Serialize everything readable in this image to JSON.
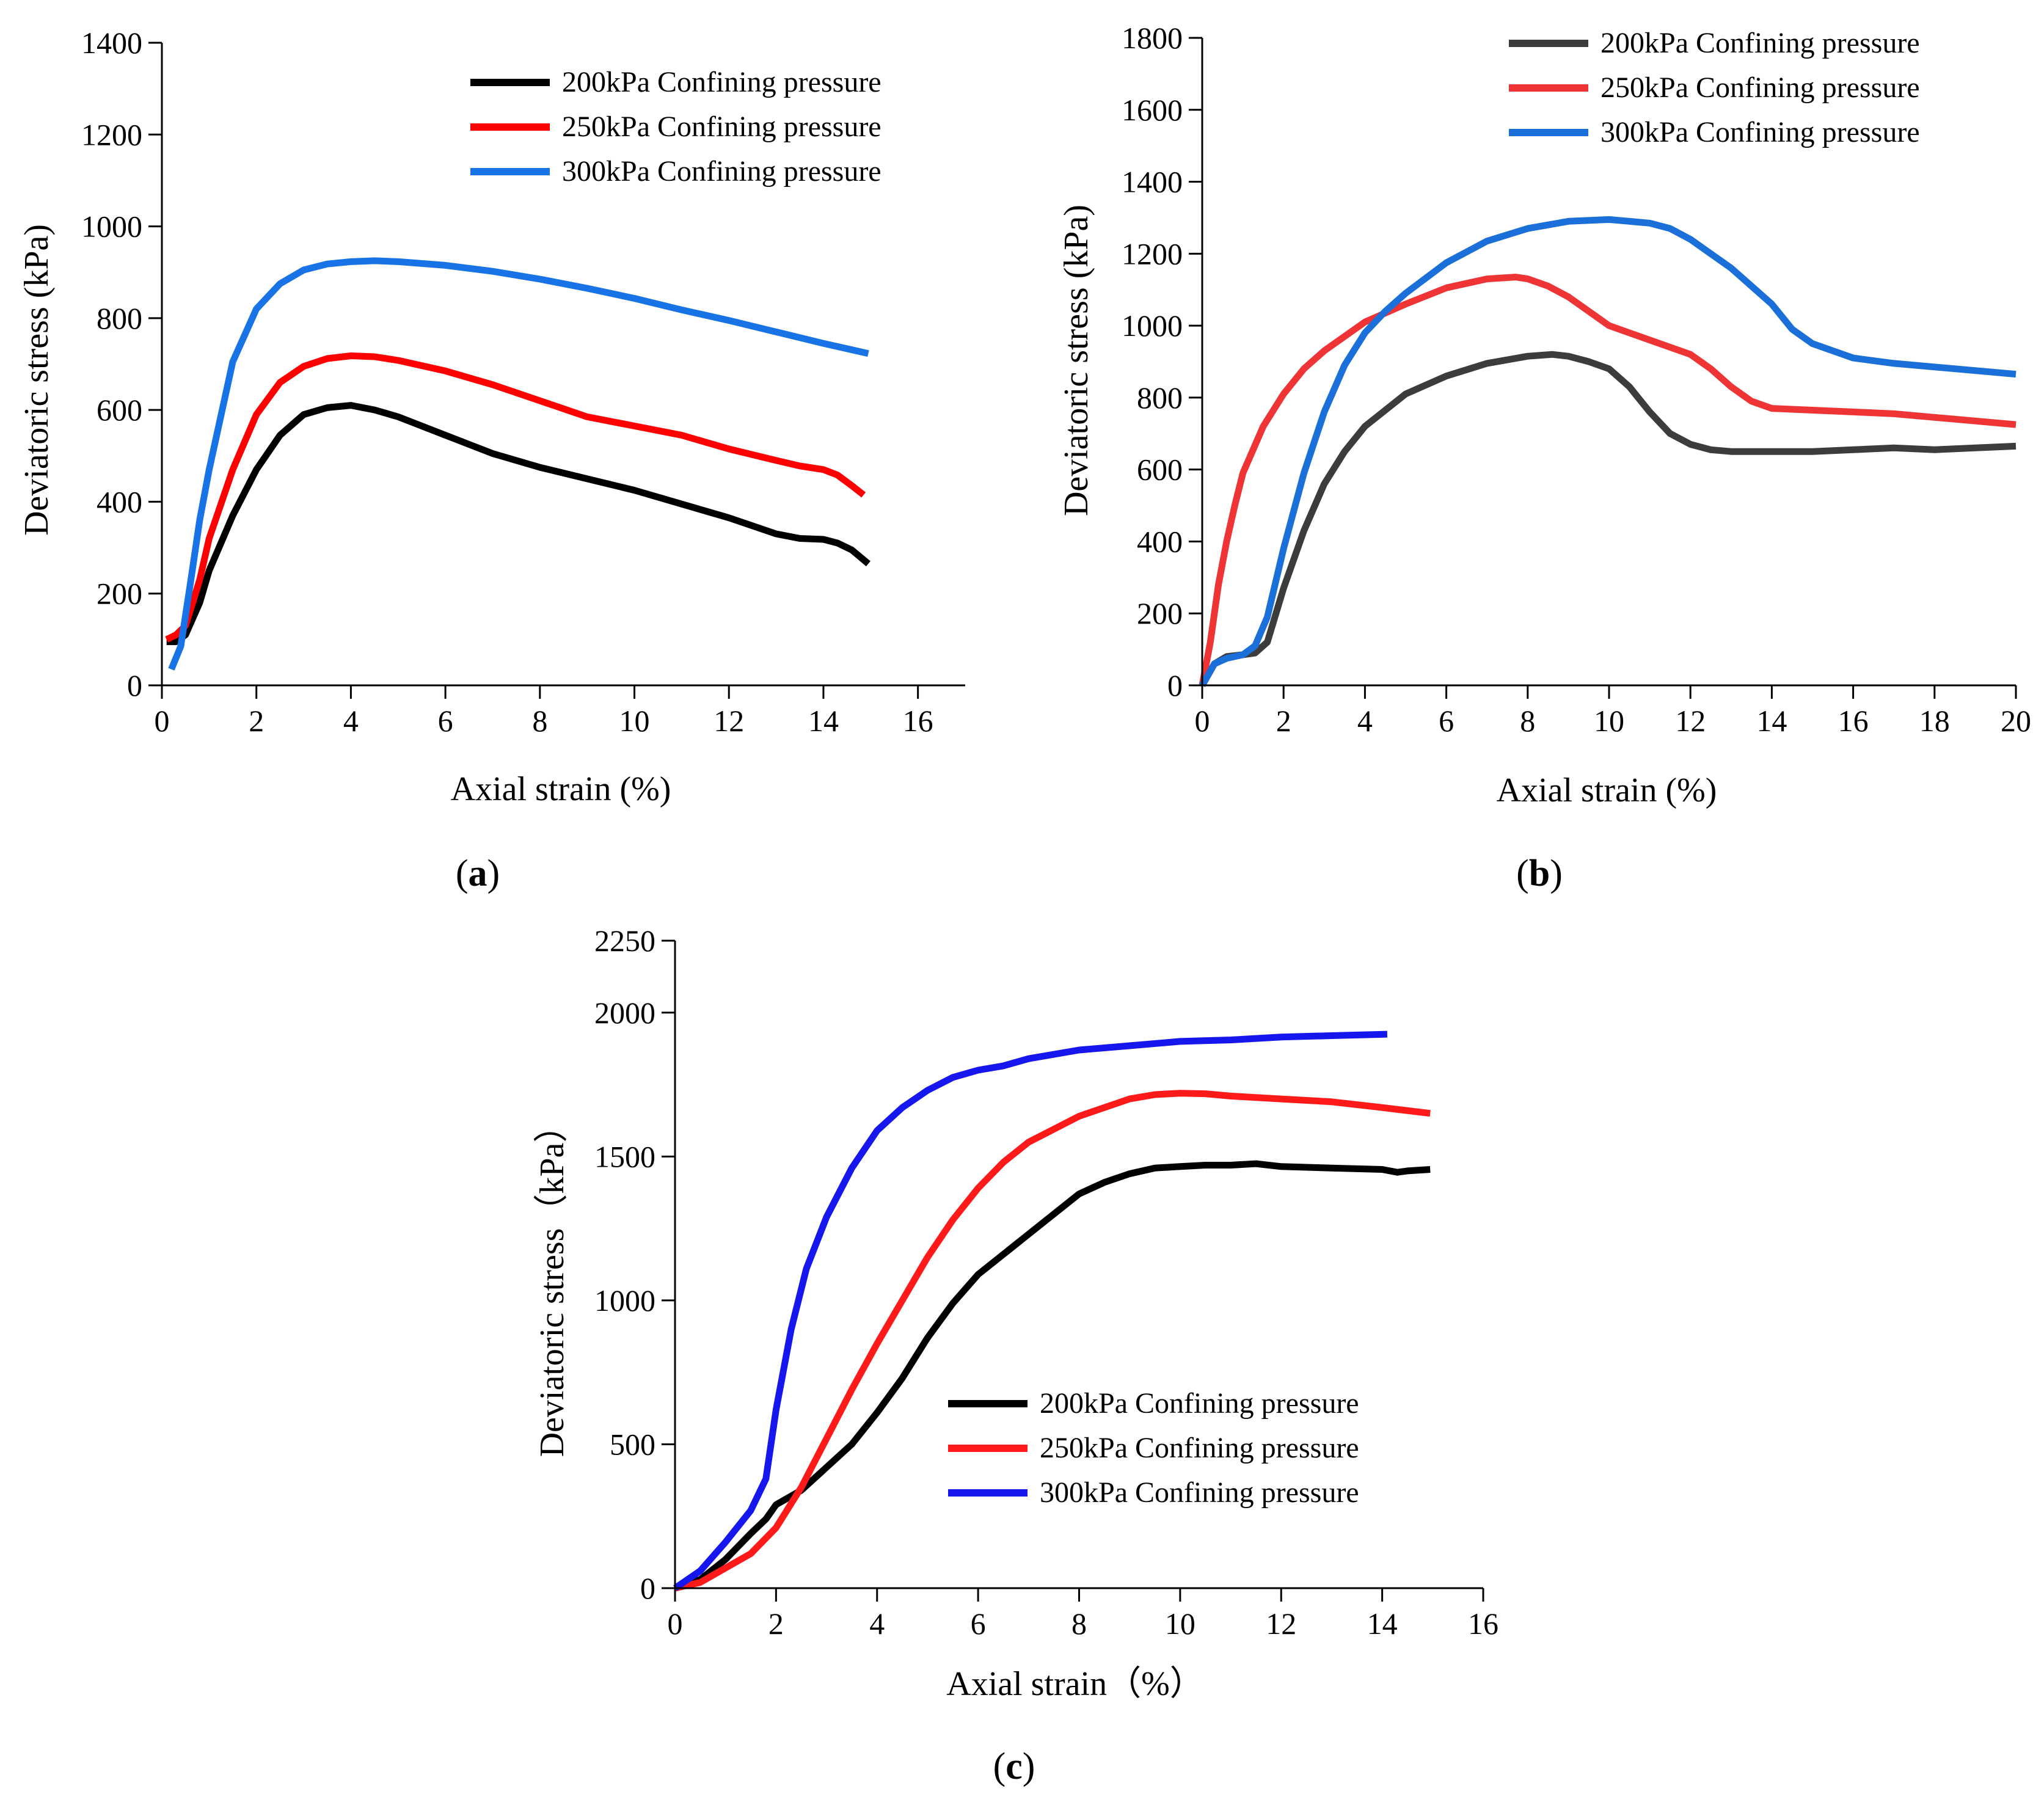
{
  "chart_data": [
    {
      "type": "line",
      "panel_label": {
        "open": "(",
        "letter": "a",
        "close": ")"
      },
      "xlabel": "Axial strain (%)",
      "ylabel": "Deviatoric stress (kPa)",
      "xlim": [
        0,
        17
      ],
      "ylim": [
        0,
        1400
      ],
      "xticks": [
        0,
        2,
        4,
        6,
        8,
        10,
        12,
        14,
        16
      ],
      "yticks": [
        0,
        200,
        400,
        600,
        800,
        1000,
        1200,
        1400
      ],
      "legend_position": "top-right",
      "series": [
        {
          "name": "200kPa Confining pressure",
          "color": "#000000",
          "x": [
            0.1,
            0.3,
            0.5,
            0.8,
            1.0,
            1.5,
            2.0,
            2.5,
            3.0,
            3.5,
            4.0,
            4.5,
            5.0,
            6.0,
            7.0,
            8.0,
            9.0,
            10.0,
            11.0,
            12.0,
            13.0,
            13.5,
            14.0,
            14.3,
            14.6,
            14.95
          ],
          "y": [
            95,
            95,
            110,
            180,
            250,
            370,
            470,
            545,
            590,
            605,
            610,
            600,
            585,
            545,
            505,
            475,
            450,
            425,
            395,
            365,
            330,
            320,
            318,
            310,
            295,
            265
          ]
        },
        {
          "name": "250kPa Confining pressure",
          "color": "#ff0000",
          "x": [
            0.1,
            0.3,
            0.5,
            0.8,
            1.0,
            1.5,
            2.0,
            2.5,
            3.0,
            3.5,
            4.0,
            4.5,
            5.0,
            6.0,
            7.0,
            8.0,
            9.0,
            10.0,
            11.0,
            12.0,
            13.0,
            13.5,
            14.0,
            14.3,
            14.6,
            14.85
          ],
          "y": [
            100,
            110,
            130,
            230,
            320,
            470,
            590,
            660,
            695,
            712,
            718,
            716,
            708,
            685,
            655,
            620,
            585,
            565,
            545,
            515,
            490,
            478,
            470,
            458,
            435,
            415
          ]
        },
        {
          "name": "300kPa Confining pressure",
          "color": "#1874e6",
          "x": [
            0.2,
            0.4,
            0.6,
            0.8,
            1.0,
            1.5,
            2.0,
            2.5,
            3.0,
            3.5,
            4.0,
            4.5,
            5.0,
            6.0,
            7.0,
            8.0,
            9.0,
            10.0,
            11.0,
            12.0,
            13.0,
            14.0,
            14.95
          ],
          "y": [
            35,
            85,
            220,
            360,
            470,
            705,
            820,
            875,
            905,
            918,
            923,
            925,
            923,
            915,
            902,
            885,
            865,
            843,
            818,
            795,
            770,
            745,
            723
          ]
        }
      ]
    },
    {
      "type": "line",
      "panel_label": {
        "open": "(",
        "letter": "b",
        "close": ")"
      },
      "xlabel": "Axial strain (%)",
      "ylabel": "Deviatoric stress (kPa)",
      "xlim": [
        0,
        20
      ],
      "ylim": [
        0,
        1800
      ],
      "xticks": [
        0,
        2,
        4,
        6,
        8,
        10,
        12,
        14,
        16,
        18,
        20
      ],
      "yticks": [
        0,
        200,
        400,
        600,
        800,
        1000,
        1200,
        1400,
        1600,
        1800
      ],
      "legend_position": "top-right",
      "series": [
        {
          "name": "200kPa Confining pressure",
          "color": "#3c3c3c",
          "x": [
            0,
            0.3,
            0.6,
            1.0,
            1.3,
            1.6,
            2.0,
            2.5,
            3.0,
            3.5,
            4.0,
            5.0,
            6.0,
            7.0,
            8.0,
            8.6,
            9.0,
            9.5,
            10.0,
            10.5,
            11.0,
            11.5,
            12.0,
            12.5,
            13.0,
            14.0,
            15.0,
            16.0,
            17.0,
            18.0,
            19.0,
            20.0
          ],
          "y": [
            0,
            60,
            80,
            85,
            90,
            120,
            270,
            430,
            560,
            650,
            720,
            810,
            860,
            895,
            915,
            920,
            915,
            900,
            880,
            830,
            760,
            700,
            670,
            655,
            650,
            650,
            650,
            655,
            660,
            655,
            660,
            665
          ]
        },
        {
          "name": "250kPa Confining pressure",
          "color": "#ee3434",
          "x": [
            0,
            0.2,
            0.4,
            0.6,
            0.8,
            1.0,
            1.5,
            2.0,
            2.5,
            3.0,
            3.5,
            4.0,
            5.0,
            6.0,
            7.0,
            7.7,
            8.0,
            8.5,
            9.0,
            10.0,
            11.0,
            12.0,
            12.5,
            13.0,
            13.5,
            14.0,
            15.0,
            16.0,
            17.0,
            18.0,
            19.0,
            20.0
          ],
          "y": [
            0,
            120,
            280,
            400,
            500,
            590,
            720,
            810,
            880,
            930,
            970,
            1010,
            1060,
            1105,
            1130,
            1135,
            1130,
            1110,
            1080,
            1000,
            960,
            920,
            880,
            830,
            790,
            770,
            765,
            760,
            755,
            745,
            735,
            725
          ]
        },
        {
          "name": "300kPa Confining pressure",
          "color": "#1a6fd9",
          "x": [
            0,
            0.3,
            0.6,
            1.0,
            1.3,
            1.6,
            2.0,
            2.5,
            3.0,
            3.5,
            4.0,
            4.5,
            5.0,
            6.0,
            7.0,
            8.0,
            9.0,
            10.0,
            11.0,
            11.5,
            12.0,
            13.0,
            14.0,
            14.5,
            15.0,
            15.5,
            16.0,
            17.0,
            18.0,
            19.0,
            20.0
          ],
          "y": [
            0,
            60,
            75,
            85,
            110,
            190,
            380,
            590,
            760,
            890,
            980,
            1040,
            1090,
            1175,
            1235,
            1270,
            1290,
            1295,
            1285,
            1270,
            1240,
            1160,
            1060,
            990,
            950,
            930,
            910,
            895,
            885,
            875,
            865
          ]
        }
      ]
    },
    {
      "type": "line",
      "panel_label": {
        "open": "(",
        "letter": "c",
        "close": ")"
      },
      "xlabel": "Axial strain（%）",
      "ylabel": "Deviatoric stress（kPa）",
      "xlim": [
        0,
        16
      ],
      "ylim": [
        0,
        2250
      ],
      "xticks": [
        0,
        2,
        4,
        6,
        8,
        10,
        12,
        14,
        16
      ],
      "yticks": [
        0,
        500,
        1000,
        1500,
        2000,
        2250
      ],
      "legend_position": "bottom-right",
      "series": [
        {
          "name": "200kPa Confining pressure",
          "color": "#000000",
          "x": [
            0,
            0.5,
            1.0,
            1.5,
            1.8,
            2.0,
            2.5,
            3.0,
            3.5,
            4.0,
            4.5,
            5.0,
            5.5,
            6.0,
            7.0,
            8.0,
            8.5,
            9.0,
            9.5,
            10.0,
            10.5,
            11.0,
            11.5,
            12.0,
            13.0,
            14.0,
            14.3,
            14.5,
            14.95
          ],
          "y": [
            0,
            30,
            100,
            190,
            240,
            290,
            340,
            420,
            500,
            610,
            730,
            870,
            990,
            1090,
            1230,
            1370,
            1410,
            1440,
            1460,
            1465,
            1470,
            1470,
            1475,
            1465,
            1460,
            1455,
            1445,
            1450,
            1455
          ]
        },
        {
          "name": "250kPa Confining pressure",
          "color": "#ff1a1a",
          "x": [
            0,
            0.5,
            1.0,
            1.5,
            2.0,
            2.5,
            3.0,
            3.5,
            4.0,
            4.5,
            5.0,
            5.5,
            6.0,
            6.5,
            7.0,
            8.0,
            9.0,
            9.5,
            10.0,
            10.5,
            11.0,
            12.0,
            13.0,
            14.0,
            14.95
          ],
          "y": [
            0,
            20,
            70,
            120,
            210,
            350,
            520,
            690,
            850,
            1000,
            1150,
            1280,
            1390,
            1480,
            1550,
            1640,
            1700,
            1715,
            1720,
            1718,
            1710,
            1700,
            1690,
            1670,
            1650
          ]
        },
        {
          "name": "300kPa Confining pressure",
          "color": "#1616ee",
          "x": [
            0,
            0.5,
            1.0,
            1.5,
            1.8,
            2.0,
            2.3,
            2.6,
            3.0,
            3.5,
            4.0,
            4.5,
            5.0,
            5.5,
            6.0,
            6.5,
            7.0,
            8.0,
            9.0,
            10.0,
            11.0,
            12.0,
            13.0,
            14.1
          ],
          "y": [
            0,
            60,
            160,
            270,
            380,
            620,
            900,
            1110,
            1290,
            1460,
            1590,
            1670,
            1730,
            1775,
            1800,
            1815,
            1840,
            1870,
            1885,
            1900,
            1905,
            1915,
            1920,
            1925
          ]
        }
      ]
    }
  ]
}
